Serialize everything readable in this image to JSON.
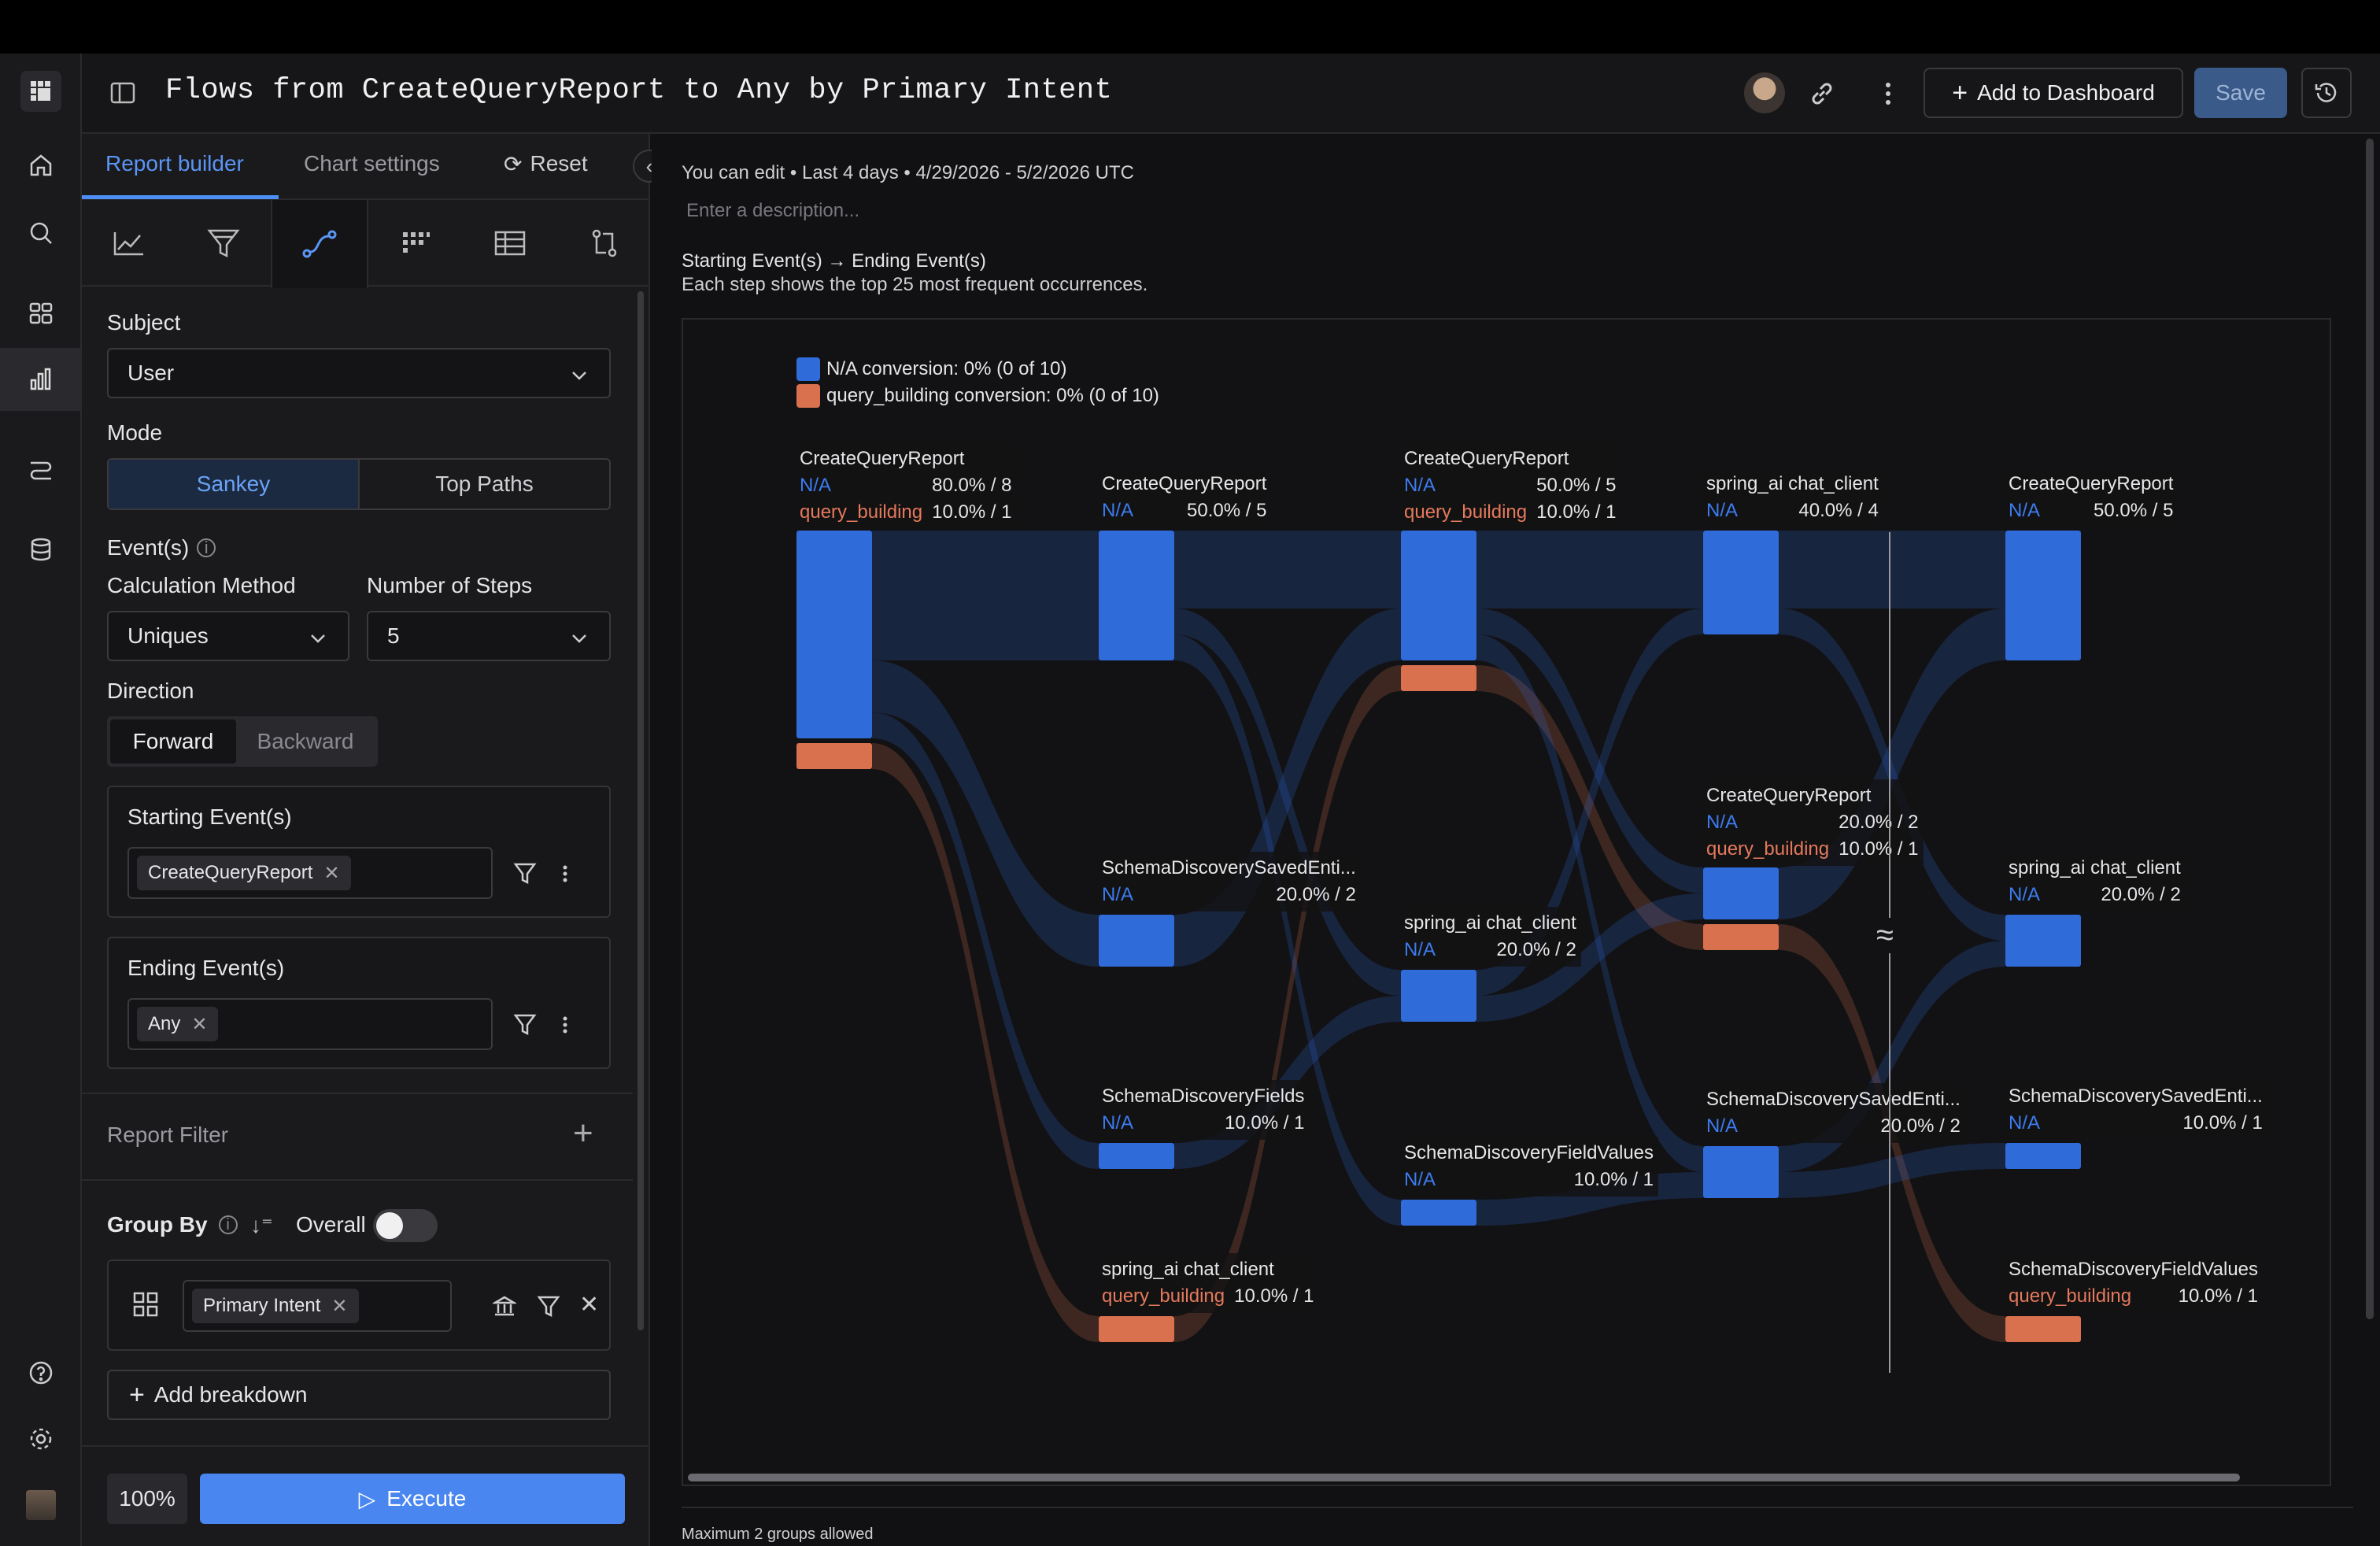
{
  "header": {
    "title": "Flows from CreateQueryReport to Any by Primary Intent",
    "add_to_dashboard": "Add to Dashboard",
    "save": "Save"
  },
  "panel": {
    "tabs": [
      "Report builder",
      "Chart settings",
      "Reset"
    ],
    "subject_label": "Subject",
    "subject_value": "User",
    "mode_label": "Mode",
    "mode_options": [
      "Sankey",
      "Top Paths"
    ],
    "events_label": "Event(s)",
    "calc_label": "Calculation Method",
    "calc_value": "Uniques",
    "steps_label": "Number of Steps",
    "steps_value": "5",
    "direction_label": "Direction",
    "direction_options": [
      "Forward",
      "Backward"
    ],
    "starting_label": "Starting Event(s)",
    "starting_chip": "CreateQueryReport",
    "ending_label": "Ending Event(s)",
    "ending_chip": "Any",
    "report_filter": "Report Filter",
    "group_by": "Group By",
    "overall": "Overall",
    "group_chip": "Primary Intent",
    "add_breakdown": "Add breakdown",
    "zoom": "100%",
    "execute": "Execute"
  },
  "main": {
    "meta": "You can edit • Last 4 days • 4/29/2026 - 5/2/2026 UTC",
    "description_placeholder": "Enter a description...",
    "flow_title": "Starting Event(s) → Ending Event(s)",
    "flow_sub": "Each step shows the top 25 most frequent occurrences.",
    "footer_note": "Maximum 2 groups allowed"
  },
  "colors": {
    "na": "#2f6bd9",
    "query_building": "#d9714f",
    "accent": "#4d8ef5"
  },
  "chart_data": {
    "type": "sankey",
    "legend": [
      "N/A conversion: 0% (0 of 10)",
      "query_building conversion: 0% (0 of 10)"
    ],
    "steps": [
      {
        "step": 1,
        "nodes": [
          {
            "event": "CreateQueryReport",
            "groups": [
              {
                "group": "N/A",
                "text": "80.0% / 8",
                "count": 8
              },
              {
                "group": "query_building",
                "text": "10.0% / 1",
                "count": 1
              }
            ]
          }
        ]
      },
      {
        "step": 2,
        "nodes": [
          {
            "event": "CreateQueryReport",
            "groups": [
              {
                "group": "N/A",
                "text": "50.0% / 5",
                "count": 5
              }
            ]
          },
          {
            "event": "SchemaDiscoverySavedEnti...",
            "groups": [
              {
                "group": "N/A",
                "text": "20.0% / 2",
                "count": 2
              }
            ]
          },
          {
            "event": "SchemaDiscoveryFields",
            "groups": [
              {
                "group": "N/A",
                "text": "10.0% / 1",
                "count": 1
              }
            ]
          },
          {
            "event": "spring_ai chat_client",
            "groups": [
              {
                "group": "query_building",
                "text": "10.0% / 1",
                "count": 1
              }
            ]
          }
        ]
      },
      {
        "step": 3,
        "nodes": [
          {
            "event": "CreateQueryReport",
            "groups": [
              {
                "group": "N/A",
                "text": "50.0% / 5",
                "count": 5
              },
              {
                "group": "query_building",
                "text": "10.0% / 1",
                "count": 1
              }
            ]
          },
          {
            "event": "spring_ai chat_client",
            "groups": [
              {
                "group": "N/A",
                "text": "20.0% / 2",
                "count": 2
              }
            ]
          },
          {
            "event": "SchemaDiscoveryFieldValues",
            "groups": [
              {
                "group": "N/A",
                "text": "10.0% / 1",
                "count": 1
              }
            ]
          }
        ]
      },
      {
        "step": 4,
        "nodes": [
          {
            "event": "spring_ai chat_client",
            "groups": [
              {
                "group": "N/A",
                "text": "40.0% / 4",
                "count": 4
              }
            ]
          },
          {
            "event": "CreateQueryReport",
            "groups": [
              {
                "group": "N/A",
                "text": "20.0% / 2",
                "count": 2
              },
              {
                "group": "query_building",
                "text": "10.0% / 1",
                "count": 1
              }
            ]
          },
          {
            "event": "SchemaDiscoverySavedEnti...",
            "groups": [
              {
                "group": "N/A",
                "text": "20.0% / 2",
                "count": 2
              }
            ]
          }
        ]
      },
      {
        "step": 5,
        "nodes": [
          {
            "event": "CreateQueryReport",
            "groups": [
              {
                "group": "N/A",
                "text": "50.0% / 5",
                "count": 5
              }
            ]
          },
          {
            "event": "spring_ai chat_client",
            "groups": [
              {
                "group": "N/A",
                "text": "20.0% / 2",
                "count": 2
              }
            ]
          },
          {
            "event": "SchemaDiscoverySavedEnti...",
            "groups": [
              {
                "group": "N/A",
                "text": "10.0% / 1",
                "count": 1
              }
            ]
          },
          {
            "event": "SchemaDiscoveryFieldValues",
            "groups": [
              {
                "group": "query_building",
                "text": "10.0% / 1",
                "count": 1
              }
            ]
          }
        ]
      }
    ]
  }
}
